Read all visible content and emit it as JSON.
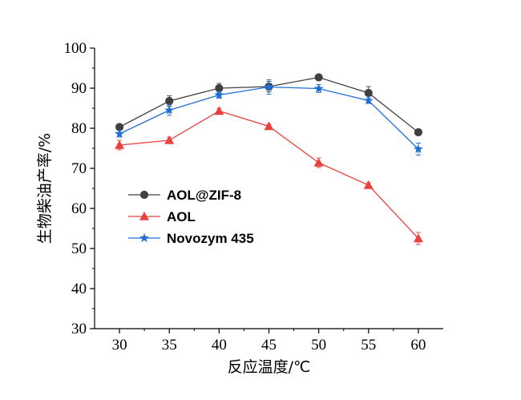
{
  "chart_data": {
    "type": "line",
    "xlabel": "反应温度/℃",
    "ylabel": "生物柴油产率/%",
    "x": [
      30,
      35,
      40,
      45,
      50,
      55,
      60
    ],
    "xticks": [
      30,
      35,
      40,
      45,
      50,
      55,
      60
    ],
    "yticks": [
      30,
      40,
      50,
      60,
      70,
      80,
      90,
      100
    ],
    "xlim": [
      27.5,
      62.5
    ],
    "ylim": [
      30,
      100
    ],
    "legend_position": "center-left",
    "series": [
      {
        "name": "AOL@ZIF-8",
        "color": "#404040",
        "marker": "circle",
        "values": [
          80.3,
          86.8,
          90.0,
          90.4,
          92.7,
          88.8,
          79.0
        ],
        "errors": [
          0.5,
          1.3,
          1.2,
          1.3,
          0.6,
          1.6,
          0.7
        ]
      },
      {
        "name": "AOL",
        "color": "#e8413e",
        "marker": "triangle",
        "values": [
          75.8,
          77.0,
          84.3,
          80.5,
          71.4,
          65.8,
          52.5
        ],
        "errors": [
          1.2,
          0.8,
          0.7,
          0.5,
          1.2,
          0.6,
          1.5
        ]
      },
      {
        "name": "Novozym 435",
        "color": "#1f6fd6",
        "marker": "star",
        "values": [
          78.6,
          84.5,
          88.3,
          90.3,
          89.9,
          86.9,
          74.8
        ],
        "errors": [
          0.8,
          1.3,
          0.8,
          1.8,
          1.0,
          0.7,
          1.5
        ]
      }
    ]
  }
}
